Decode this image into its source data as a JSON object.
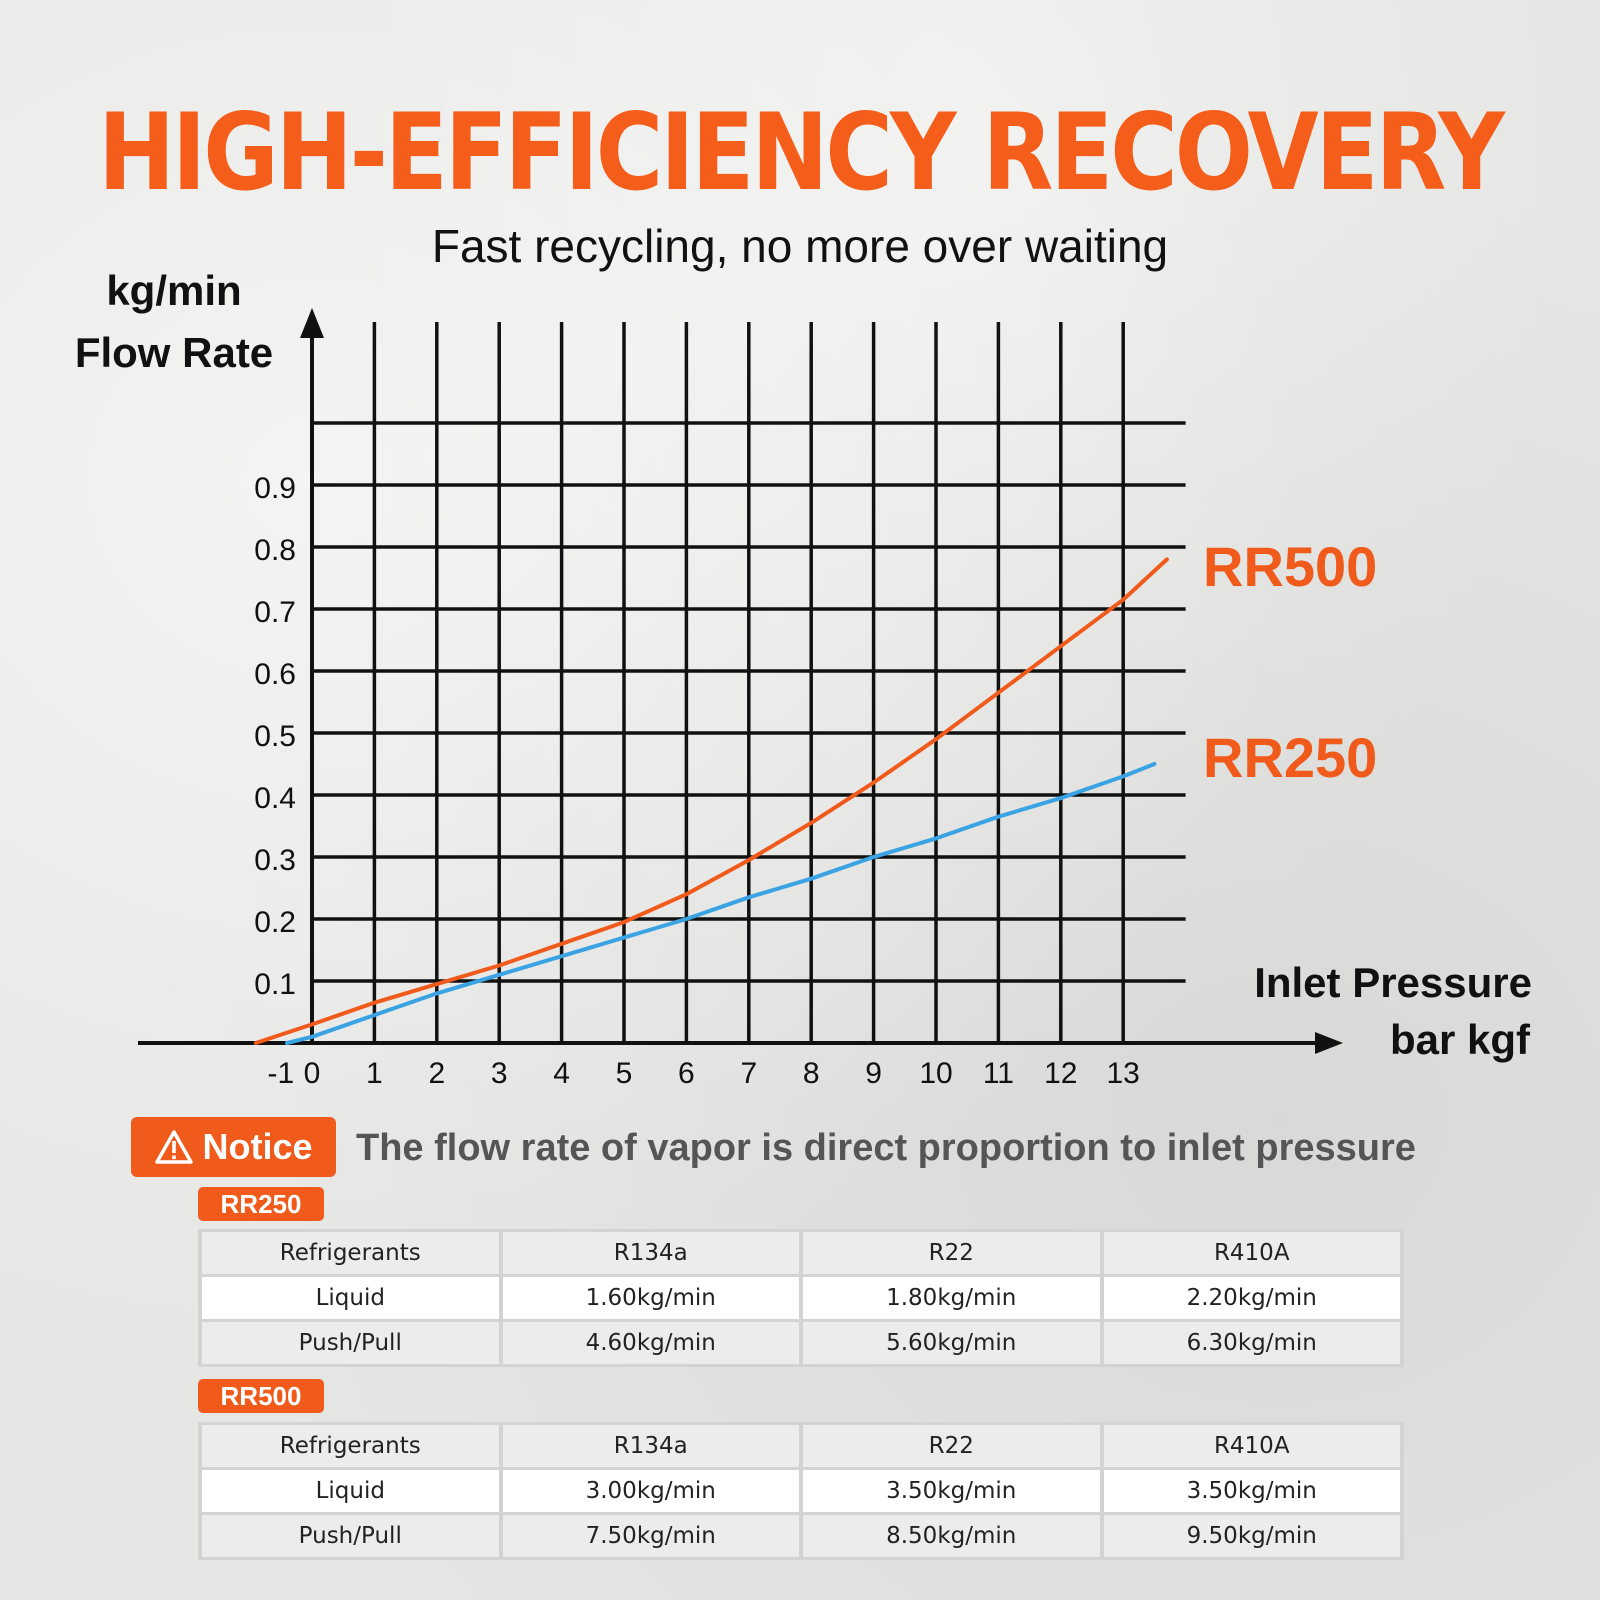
{
  "header": {
    "title": "HIGH-EFFICIENCY RECOVERY",
    "subtitle": "Fast recycling, no more over waiting"
  },
  "chart_data": {
    "type": "line",
    "ylabel_unit": "kg/min",
    "ylabel": "Flow Rate",
    "xlabel": "Inlet Pressure",
    "xlabel_unit": "bar kgf",
    "x_ticks": [
      "-1",
      "0",
      "1",
      "2",
      "3",
      "4",
      "5",
      "6",
      "7",
      "8",
      "9",
      "10",
      "11",
      "12",
      "13"
    ],
    "y_ticks": [
      "0.1",
      "0.2",
      "0.3",
      "0.4",
      "0.5",
      "0.6",
      "0.7",
      "0.8",
      "0.9"
    ],
    "xlim": [
      -1,
      14
    ],
    "ylim": [
      0,
      1.1
    ],
    "grid": true,
    "series": [
      {
        "name": "RR500",
        "color": "#f05a1b",
        "x": [
          -0.9,
          0,
          1,
          2,
          3,
          4,
          5,
          6,
          7,
          8,
          9,
          10,
          11,
          12,
          13,
          13.7
        ],
        "y": [
          0,
          0.03,
          0.065,
          0.095,
          0.125,
          0.16,
          0.195,
          0.24,
          0.295,
          0.355,
          0.42,
          0.49,
          0.565,
          0.64,
          0.715,
          0.78
        ]
      },
      {
        "name": "RR250",
        "color": "#3aa3e3",
        "x": [
          -0.4,
          0,
          1,
          2,
          3,
          4,
          5,
          6,
          7,
          8,
          9,
          10,
          11,
          12,
          13,
          13.5
        ],
        "y": [
          0,
          0.01,
          0.045,
          0.08,
          0.11,
          0.14,
          0.17,
          0.2,
          0.235,
          0.265,
          0.3,
          0.33,
          0.365,
          0.395,
          0.43,
          0.45
        ]
      }
    ]
  },
  "notice": {
    "icon": "warning-icon",
    "label": "Notice",
    "text": "The flow rate of vapor is direct proportion to inlet pressure"
  },
  "tables": [
    {
      "tag": "RR250",
      "headers": [
        "Refrigerants",
        "R134a",
        "R22",
        "R410A"
      ],
      "rows": [
        [
          "Liquid",
          "1.60kg/min",
          "1.80kg/min",
          "2.20kg/min"
        ],
        [
          "Push/Pull",
          "4.60kg/min",
          "5.60kg/min",
          "6.30kg/min"
        ]
      ]
    },
    {
      "tag": "RR500",
      "headers": [
        "Refrigerants",
        "R134a",
        "R22",
        "R410A"
      ],
      "rows": [
        [
          "Liquid",
          "3.00kg/min",
          "3.50kg/min",
          "3.50kg/min"
        ],
        [
          "Push/Pull",
          "7.50kg/min",
          "8.50kg/min",
          "9.50kg/min"
        ]
      ]
    }
  ],
  "colors": {
    "accent": "#f05a1b",
    "rr250_line": "#3aa3e3",
    "grid": "#111111"
  }
}
